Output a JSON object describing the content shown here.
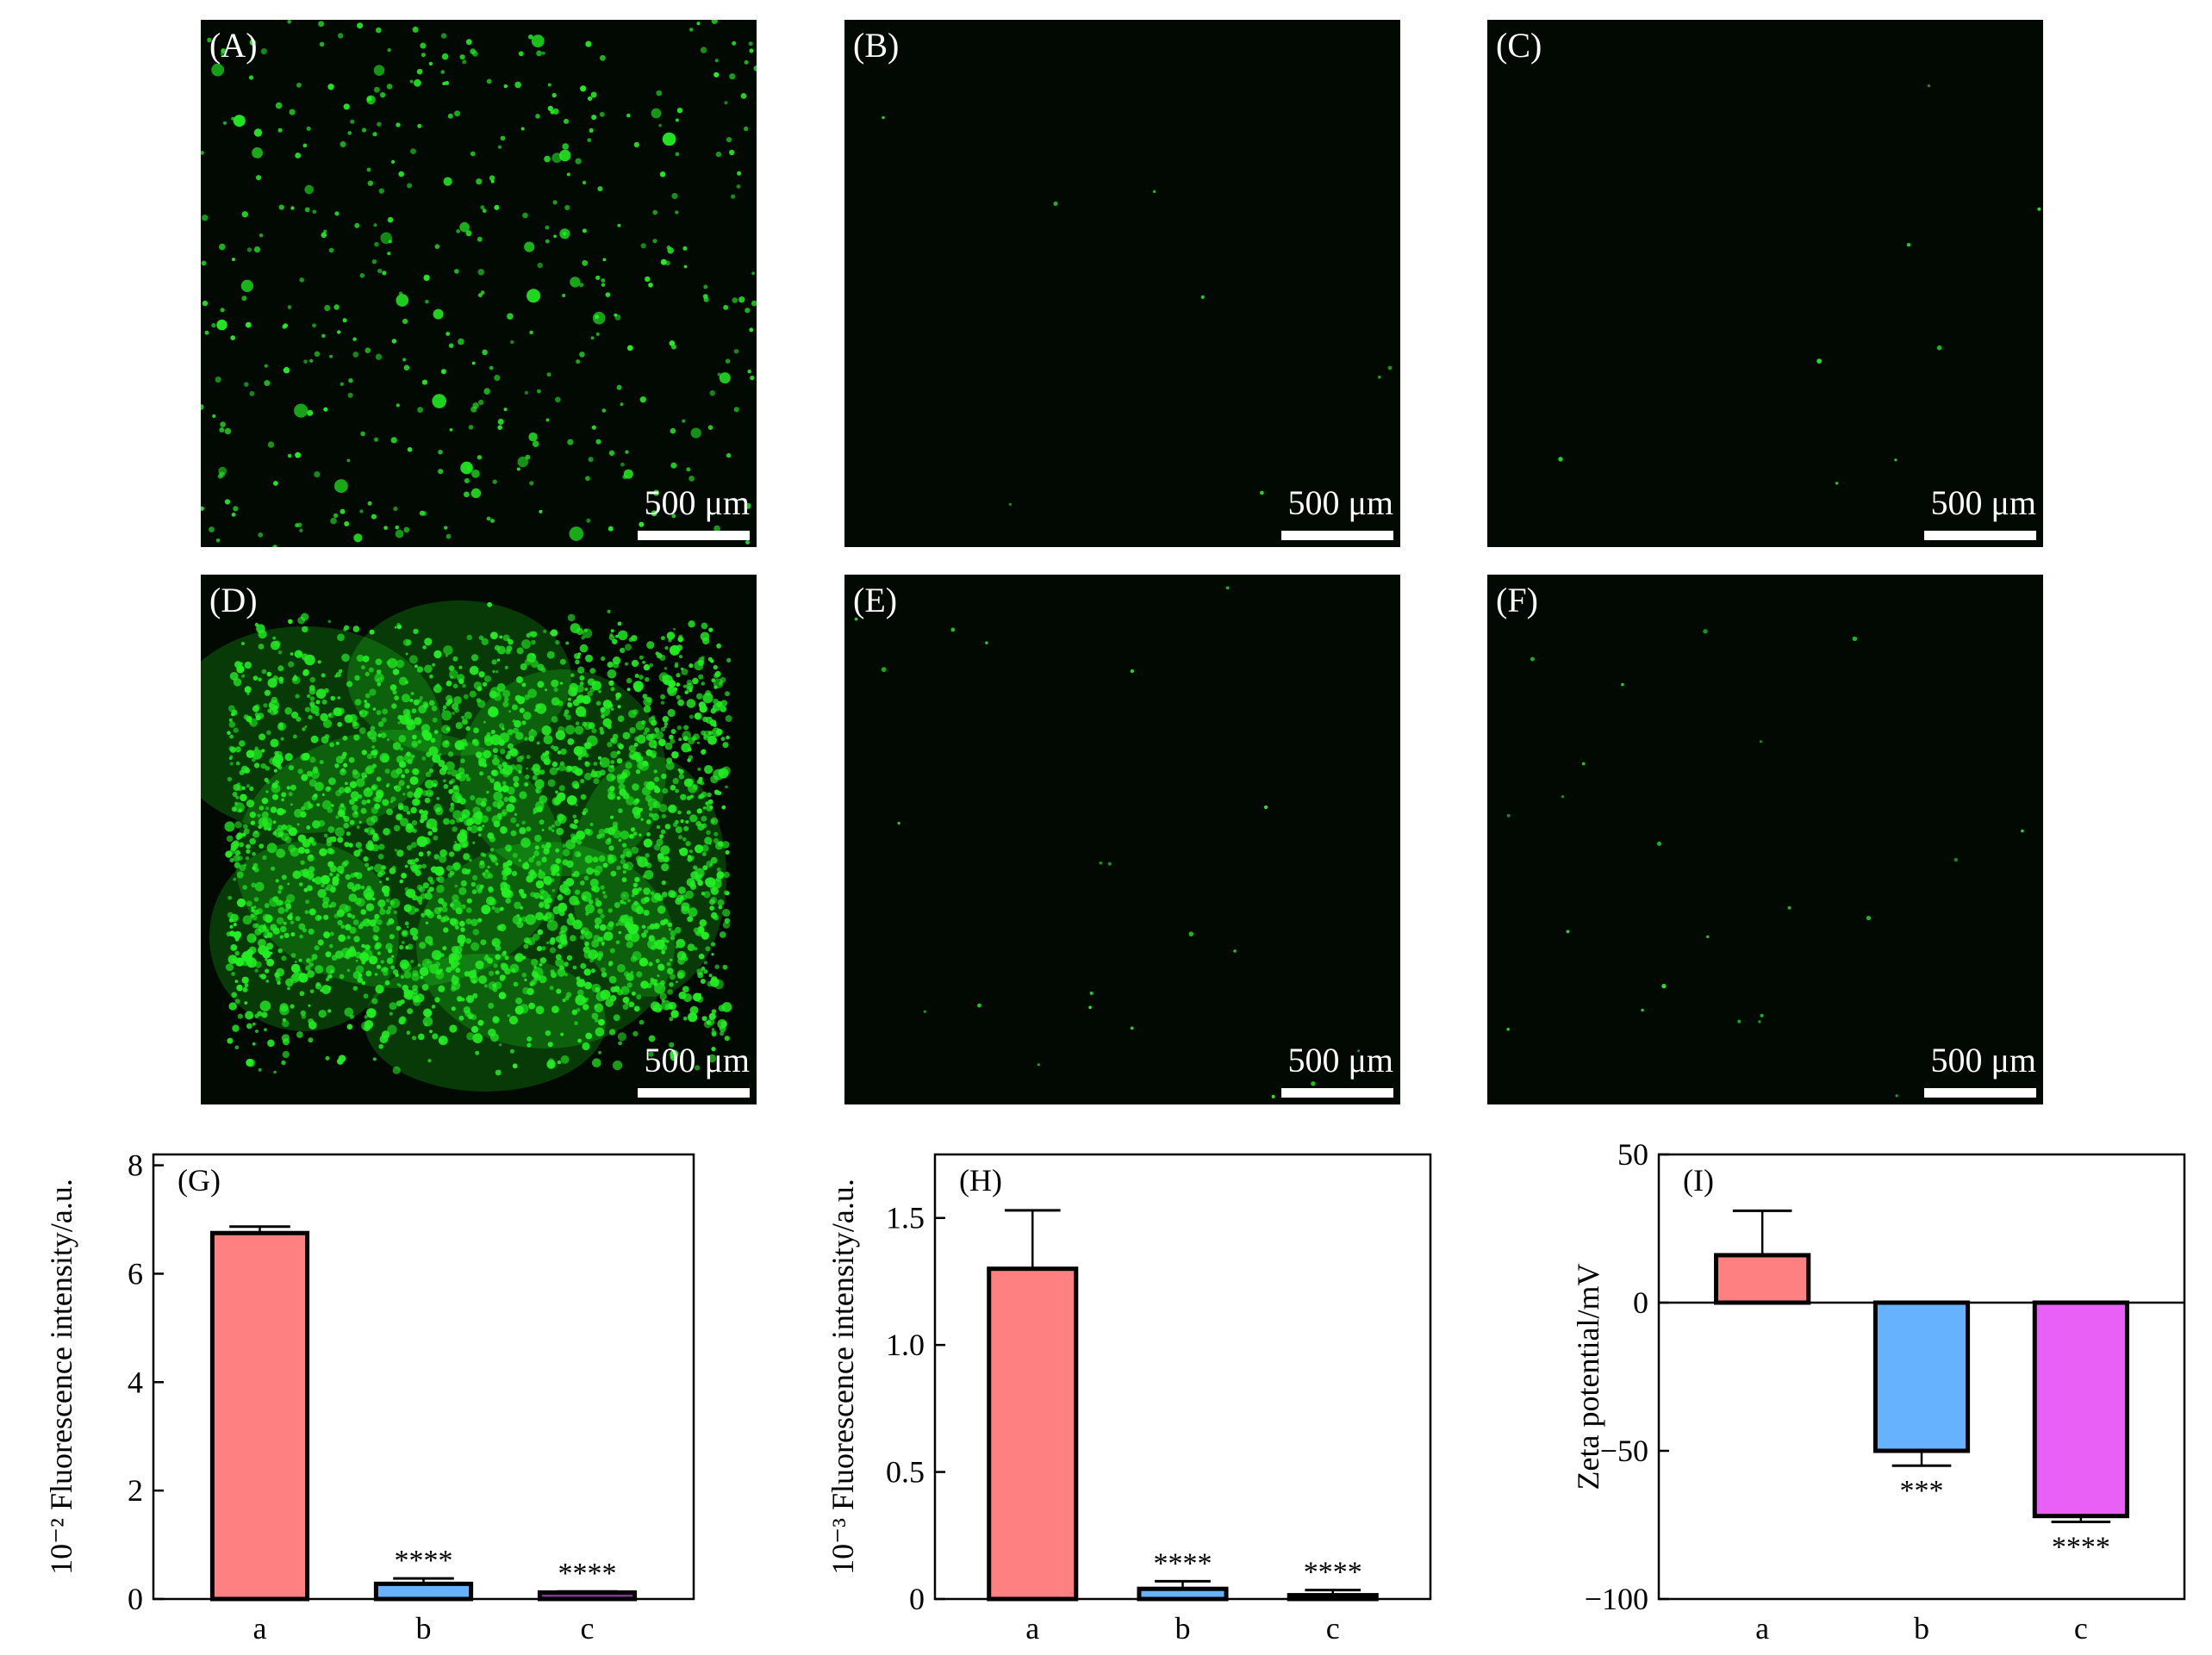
{
  "images": [
    {
      "label": "(A)",
      "scale_bar": "500 μm",
      "signal": "dense"
    },
    {
      "label": "(B)",
      "scale_bar": "500 μm",
      "signal": "very-sparse"
    },
    {
      "label": "(C)",
      "scale_bar": "500 μm",
      "signal": "very-sparse"
    },
    {
      "label": "(D)",
      "scale_bar": "500 μm",
      "signal": "very-dense"
    },
    {
      "label": "(E)",
      "scale_bar": "500 μm",
      "signal": "sparse"
    },
    {
      "label": "(F)",
      "scale_bar": "500 μm",
      "signal": "sparse"
    }
  ],
  "colors": {
    "fluorescence": "#22ee22",
    "image_background": "#020802",
    "bar_a": "#ff8080",
    "bar_b": "#66b2ff",
    "bar_c": "#e860f5"
  },
  "chart_data": [
    {
      "type": "bar",
      "panel_label": "(G)",
      "ylabel": "10⁻² Fluorescence intensity/a.u.",
      "categories": [
        "a",
        "b",
        "c"
      ],
      "values": [
        6.75,
        0.28,
        0.12
      ],
      "errors": [
        0.12,
        0.1,
        0.02
      ],
      "significance": [
        "",
        "****",
        "****"
      ],
      "ylim": [
        0,
        8.2
      ],
      "yticks": [
        0,
        2,
        4,
        6,
        8
      ],
      "ytick_labels": [
        "0",
        "2",
        "4",
        "6",
        "8"
      ],
      "bar_colors": [
        "#ff8080",
        "#66b2ff",
        "#7a3a8a"
      ]
    },
    {
      "type": "bar",
      "panel_label": "(H)",
      "ylabel": "10⁻³ Fluorescence intensity/a.u.",
      "categories": [
        "a",
        "b",
        "c"
      ],
      "values": [
        1.3,
        0.04,
        0.015
      ],
      "errors": [
        0.23,
        0.03,
        0.02
      ],
      "significance": [
        "",
        "****",
        "****"
      ],
      "ylim": [
        0,
        1.75
      ],
      "yticks": [
        0,
        0.5,
        1.0,
        1.5
      ],
      "ytick_labels": [
        "0",
        "0.5",
        "1.0",
        "1.5"
      ],
      "bar_colors": [
        "#ff8080",
        "#66b2ff",
        "#e860f5"
      ]
    },
    {
      "type": "bar",
      "panel_label": "(I)",
      "ylabel": "Zeta potential/mV",
      "categories": [
        "a",
        "b",
        "c"
      ],
      "values": [
        16,
        -50,
        -72
      ],
      "errors": [
        15,
        5,
        2
      ],
      "significance": [
        "",
        "***",
        "****"
      ],
      "ylim": [
        -100,
        50
      ],
      "yticks": [
        -100,
        -50,
        0,
        50
      ],
      "ytick_labels": [
        "−100",
        "−50",
        "0",
        "50"
      ],
      "bar_colors": [
        "#ff8080",
        "#66b2ff",
        "#e860f5"
      ]
    }
  ]
}
